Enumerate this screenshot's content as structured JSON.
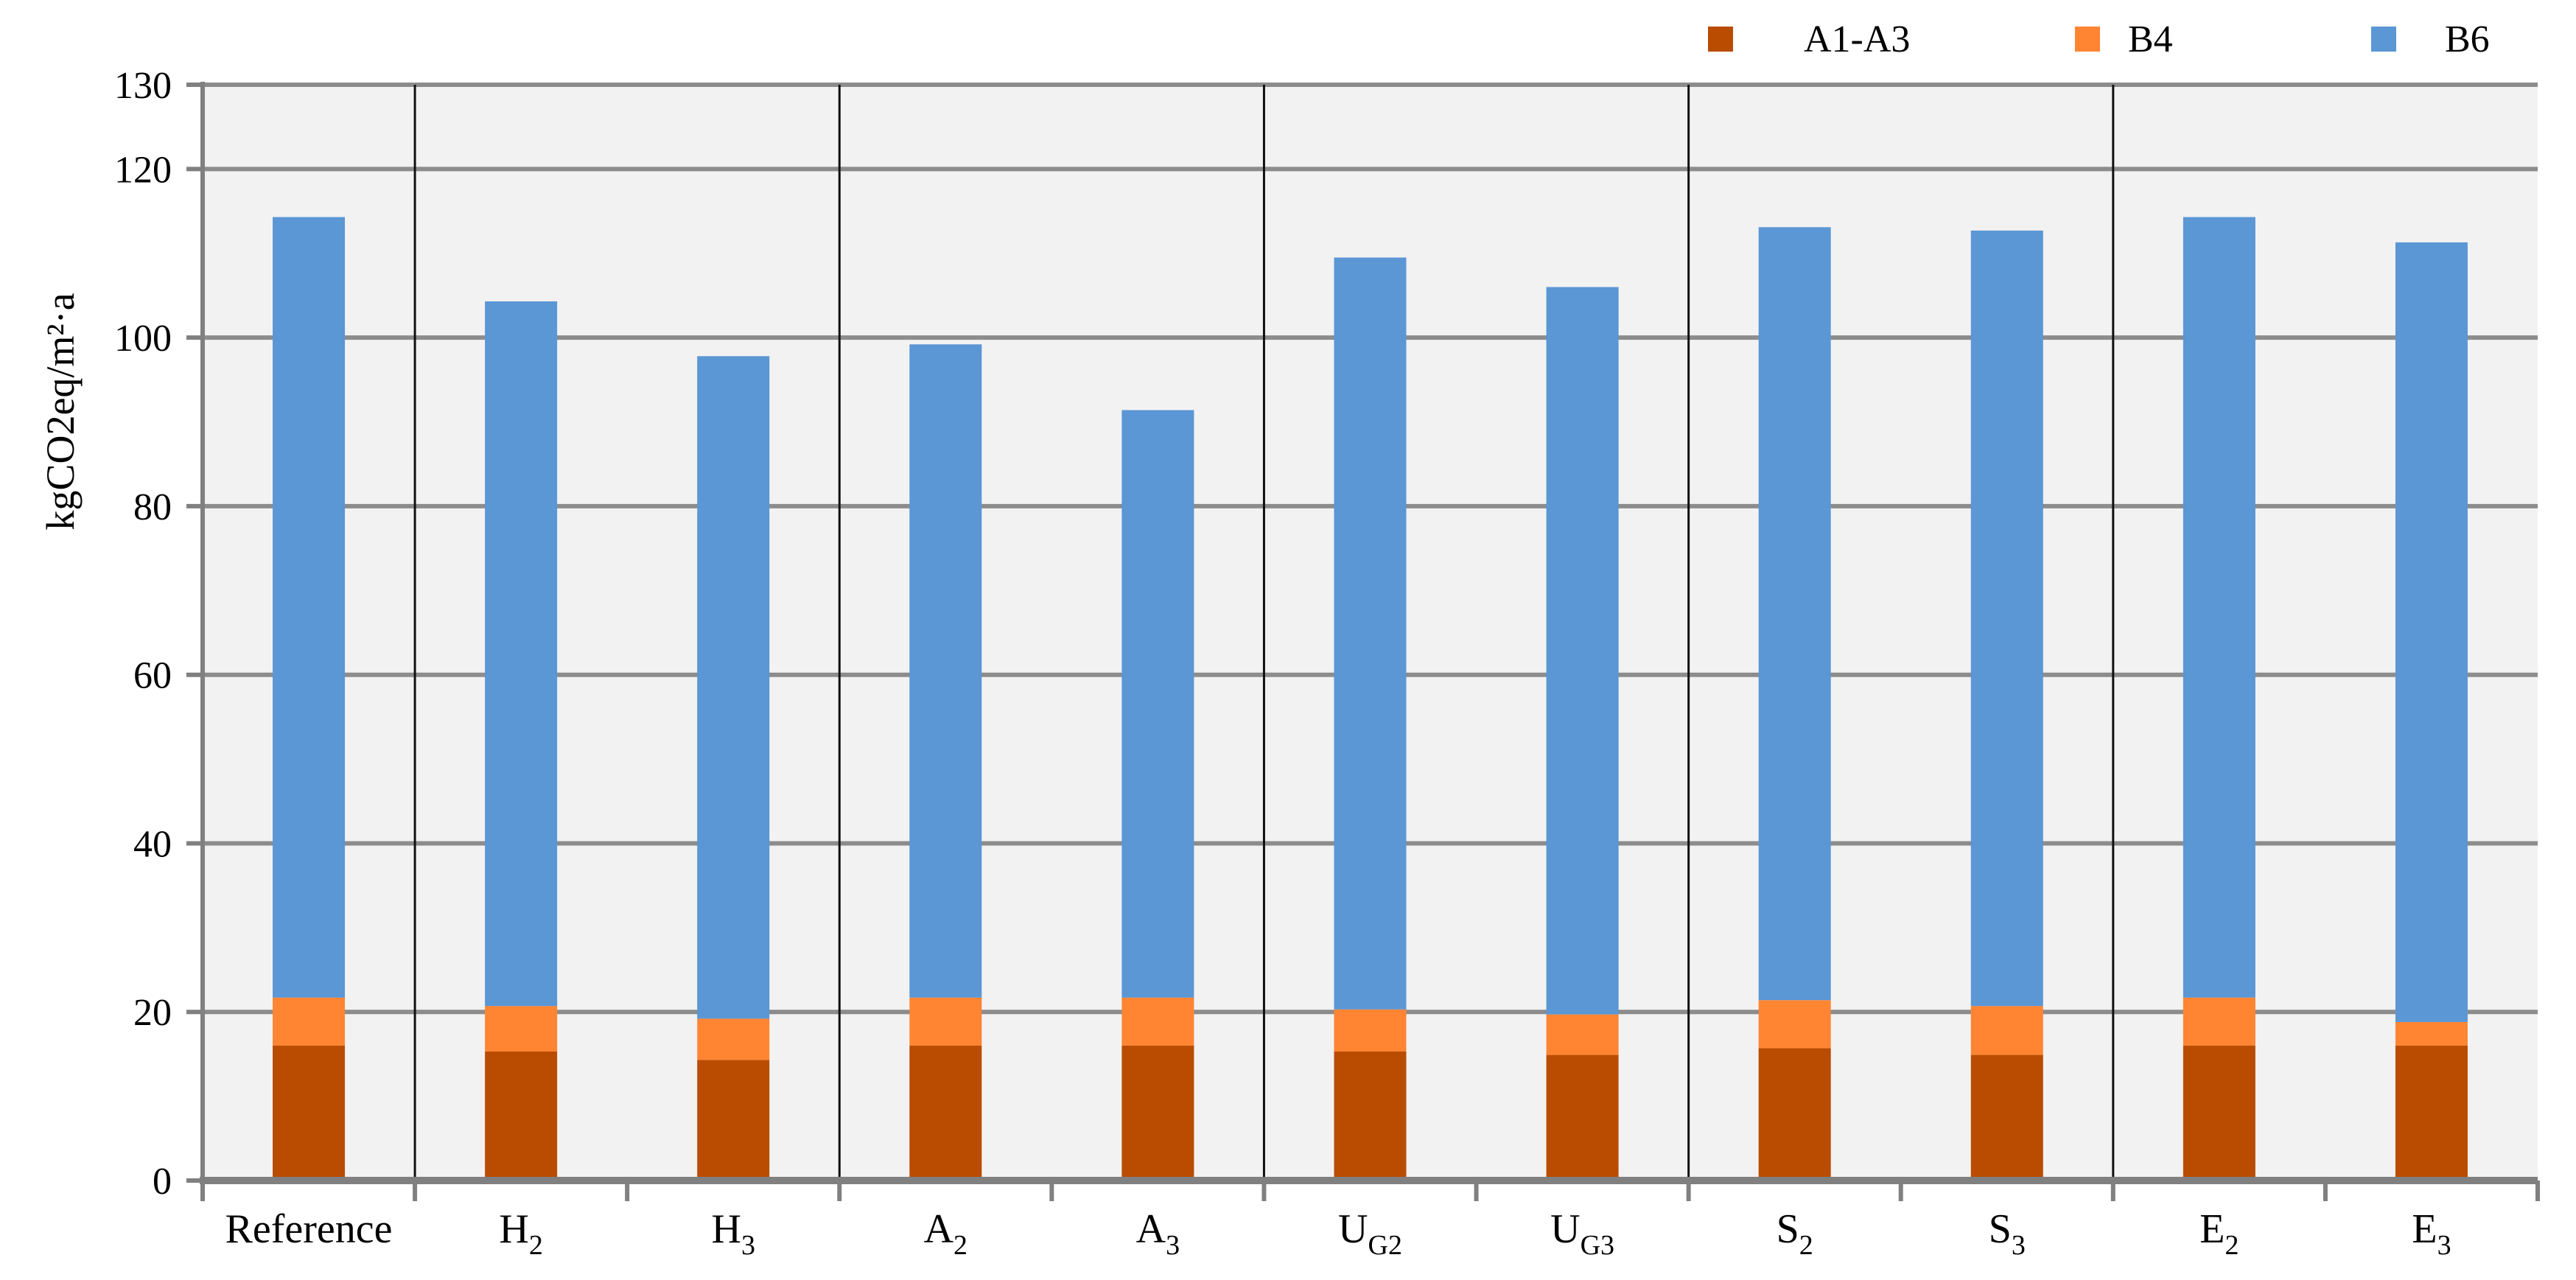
{
  "chart_data": {
    "type": "bar",
    "stacked": true,
    "title": "",
    "xlabel": "",
    "ylabel": "kgCO2eq/m²·a",
    "ylim": [
      0,
      130
    ],
    "yticks": [
      0,
      20,
      40,
      60,
      80,
      100,
      120
    ],
    "ytick_labels": [
      "0",
      "20",
      "40",
      "60",
      "80",
      "100",
      "120"
    ],
    "grid": true,
    "legend_position": "top-right",
    "categories": [
      {
        "base": "Reference",
        "sub": ""
      },
      {
        "base": "H",
        "sub": "2"
      },
      {
        "base": "H",
        "sub": "3"
      },
      {
        "base": "A",
        "sub": "2"
      },
      {
        "base": "A",
        "sub": "3"
      },
      {
        "base": "U",
        "sub": "G2"
      },
      {
        "base": "U",
        "sub": "G3"
      },
      {
        "base": "S",
        "sub": "2"
      },
      {
        "base": "S",
        "sub": "3"
      },
      {
        "base": "E",
        "sub": "2"
      },
      {
        "base": "E",
        "sub": "3"
      }
    ],
    "series": [
      {
        "name": "A1-A3",
        "color": "#b94c00",
        "values": [
          16.0,
          15.3,
          14.3,
          16.0,
          16.0,
          15.3,
          14.9,
          15.7,
          14.9,
          16.0,
          16.0
        ]
      },
      {
        "name": "B4",
        "color": "#ff8533",
        "values": [
          5.7,
          5.4,
          4.9,
          5.7,
          5.7,
          5.0,
          4.8,
          5.7,
          5.8,
          5.7,
          2.8
        ]
      },
      {
        "name": "B6",
        "color": "#5b96d5",
        "values": [
          92.6,
          83.6,
          78.6,
          77.5,
          69.7,
          89.2,
          86.3,
          91.7,
          92.0,
          92.6,
          92.5
        ]
      }
    ],
    "group_separators_after": [
      0,
      2,
      4,
      6,
      8
    ]
  }
}
